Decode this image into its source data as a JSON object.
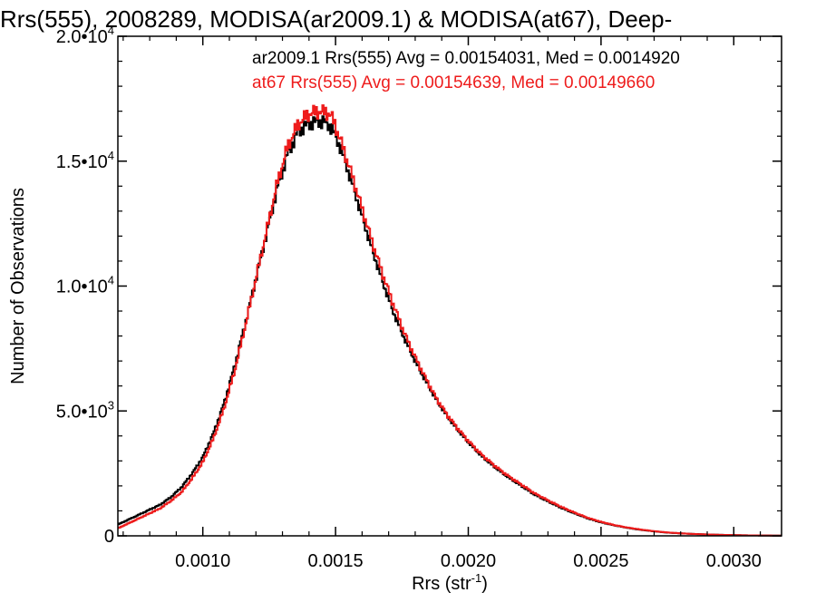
{
  "chart_data": {
    "type": "line",
    "title": "Rrs(555), 2008289, MODISA(ar2009.1) & MODISA(at67), Deep-",
    "xlabel": "Rrs (str",
    "xlabel_sup": "-1",
    "xlabel_end": ")",
    "ylabel": "Number of Observations",
    "xlim": [
      0.00068,
      0.00318
    ],
    "ylim": [
      0,
      20000
    ],
    "x_ticks": [
      {
        "value": 0.001,
        "label": "0.0010"
      },
      {
        "value": 0.0015,
        "label": "0.0015"
      },
      {
        "value": 0.002,
        "label": "0.0020"
      },
      {
        "value": 0.0025,
        "label": "0.0025"
      },
      {
        "value": 0.003,
        "label": "0.0030"
      }
    ],
    "y_ticks": [
      {
        "value": 0,
        "mant": "0",
        "exp": ""
      },
      {
        "value": 5000,
        "mant": "5.0•10",
        "exp": "3"
      },
      {
        "value": 10000,
        "mant": "1.0•10",
        "exp": "4"
      },
      {
        "value": 15000,
        "mant": "1.5•10",
        "exp": "4"
      },
      {
        "value": 20000,
        "mant": "2.0•10",
        "exp": "4"
      }
    ],
    "annotations": [
      "ar2009.1 Rrs(555) Avg = 0.00154031, Med = 0.0014920",
      "at67 Rrs(555) Avg = 0.00154639, Med = 0.00149660"
    ],
    "series": [
      {
        "color": "#000000",
        "x": [
          0.00068,
          0.00072,
          0.00076,
          0.0008,
          0.00084,
          0.00088,
          0.00092,
          0.00096,
          0.001,
          0.00104,
          0.00108,
          0.00112,
          0.00116,
          0.0012,
          0.00124,
          0.00128,
          0.00132,
          0.00136,
          0.0014,
          0.00142,
          0.00144,
          0.00146,
          0.00148,
          0.0015,
          0.00152,
          0.00156,
          0.0016,
          0.00164,
          0.00168,
          0.00172,
          0.00176,
          0.0018,
          0.00184,
          0.00188,
          0.00192,
          0.00196,
          0.002,
          0.00205,
          0.0021,
          0.00215,
          0.0022,
          0.00225,
          0.0023,
          0.00235,
          0.0024,
          0.00245,
          0.0025,
          0.00255,
          0.0026,
          0.00265,
          0.0027,
          0.00275,
          0.0028,
          0.00285,
          0.0029,
          0.00295,
          0.003,
          0.00305,
          0.0031,
          0.00318
        ],
        "y": [
          450,
          650,
          850,
          1050,
          1250,
          1550,
          1950,
          2500,
          3150,
          4100,
          5300,
          6800,
          8500,
          10300,
          12100,
          13900,
          15300,
          16200,
          16500,
          16550,
          16600,
          16550,
          16400,
          16000,
          15500,
          14200,
          12800,
          11400,
          10100,
          8900,
          7900,
          7000,
          6200,
          5450,
          4800,
          4250,
          3750,
          3200,
          2750,
          2350,
          2000,
          1650,
          1380,
          1120,
          900,
          700,
          540,
          420,
          320,
          240,
          180,
          130,
          100,
          75,
          55,
          40,
          30,
          20,
          15,
          8
        ]
      },
      {
        "color": "#ee1c1c",
        "x": [
          0.00068,
          0.00072,
          0.00076,
          0.0008,
          0.00084,
          0.00088,
          0.00092,
          0.00096,
          0.001,
          0.00104,
          0.00108,
          0.00112,
          0.00116,
          0.0012,
          0.00124,
          0.00128,
          0.00132,
          0.00136,
          0.0014,
          0.00142,
          0.00144,
          0.00146,
          0.00148,
          0.0015,
          0.00152,
          0.00156,
          0.0016,
          0.00164,
          0.00168,
          0.00172,
          0.00176,
          0.0018,
          0.00184,
          0.00188,
          0.00192,
          0.00196,
          0.002,
          0.00205,
          0.0021,
          0.00215,
          0.0022,
          0.00225,
          0.0023,
          0.00235,
          0.0024,
          0.00245,
          0.0025,
          0.00255,
          0.0026,
          0.00265,
          0.0027,
          0.00275,
          0.0028,
          0.00285,
          0.0029,
          0.00295,
          0.003,
          0.00305,
          0.0031,
          0.00318
        ],
        "y": [
          300,
          500,
          700,
          900,
          1100,
          1400,
          1750,
          2300,
          2950,
          3900,
          5100,
          6600,
          8400,
          10300,
          12200,
          14100,
          15600,
          16500,
          16900,
          16950,
          17000,
          16950,
          16900,
          16400,
          15800,
          14500,
          13100,
          11700,
          10400,
          9200,
          8100,
          7150,
          6300,
          5500,
          4850,
          4300,
          3800,
          3250,
          2800,
          2400,
          2050,
          1700,
          1420,
          1160,
          930,
          720,
          560,
          430,
          330,
          250,
          185,
          135,
          100,
          75,
          55,
          40,
          30,
          20,
          15,
          8
        ]
      }
    ]
  }
}
